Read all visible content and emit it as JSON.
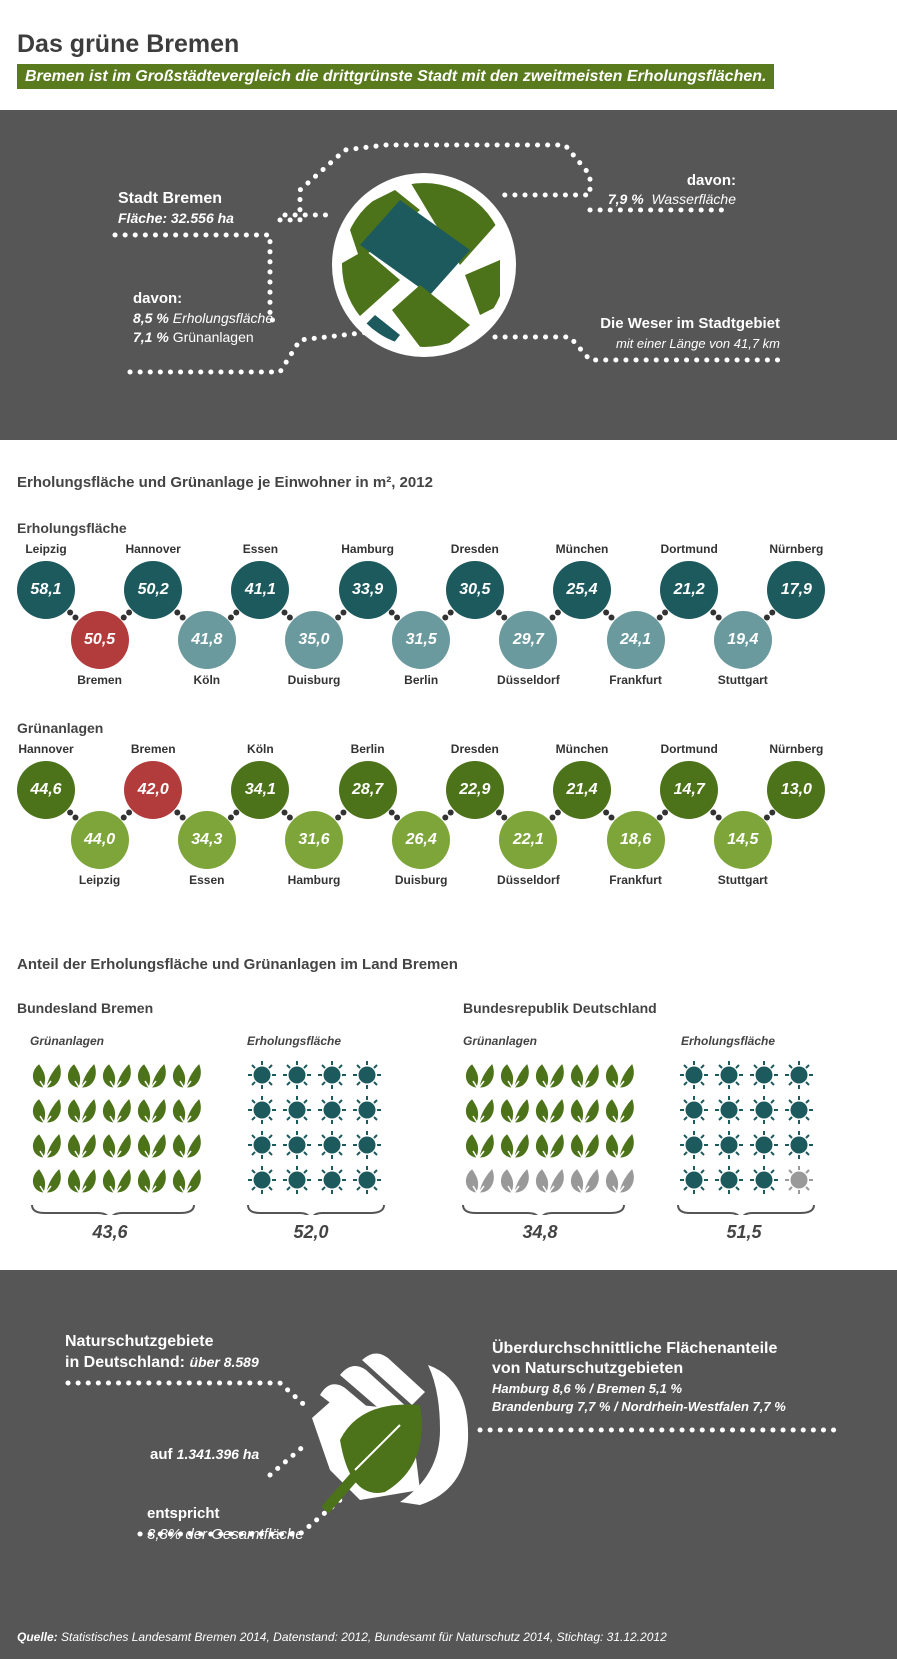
{
  "header": {
    "title": "Das grüne Bremen",
    "subtitle": "Bremen ist im Großstädtevergleich die drittgrünste Stadt mit den zweitmeisten Erholungsflächen."
  },
  "stadt": {
    "name": "Stadt Bremen",
    "flaeche": "Fläche: 32.556 ha",
    "davon_label": "davon:",
    "erholung_pct": "8,5 %",
    "erholung_txt": "Erholungsfläche",
    "gruen_pct": "7,1 %",
    "gruen_txt": "Grünanlagen",
    "davon_right": "davon:",
    "wasser_pct": "7,9 %",
    "wasser_txt": "Wasserfläche",
    "weser_title": "Die Weser im Stadtgebiet",
    "weser_sub": "mit einer Länge von 41,7 km"
  },
  "per_capita": {
    "title": "Erholungsfläche und Grünanlage je Einwohner in m², 2012",
    "erholung": {
      "label": "Erholungsfläche",
      "items": [
        {
          "city": "Leipzig",
          "value": "58,1",
          "tone": "dark",
          "pos": "top"
        },
        {
          "city": "Bremen",
          "value": "50,5",
          "tone": "red",
          "pos": "bottom"
        },
        {
          "city": "Hannover",
          "value": "50,2",
          "tone": "dark",
          "pos": "top"
        },
        {
          "city": "Köln",
          "value": "41,8",
          "tone": "light",
          "pos": "bottom"
        },
        {
          "city": "Essen",
          "value": "41,1",
          "tone": "dark",
          "pos": "top"
        },
        {
          "city": "Duisburg",
          "value": "35,0",
          "tone": "light",
          "pos": "bottom"
        },
        {
          "city": "Hamburg",
          "value": "33,9",
          "tone": "dark",
          "pos": "top"
        },
        {
          "city": "Berlin",
          "value": "31,5",
          "tone": "light",
          "pos": "bottom"
        },
        {
          "city": "Dresden",
          "value": "30,5",
          "tone": "dark",
          "pos": "top"
        },
        {
          "city": "Düsseldorf",
          "value": "29,7",
          "tone": "light",
          "pos": "bottom"
        },
        {
          "city": "München",
          "value": "25,4",
          "tone": "dark",
          "pos": "top"
        },
        {
          "city": "Frankfurt",
          "value": "24,1",
          "tone": "light",
          "pos": "bottom"
        },
        {
          "city": "Dortmund",
          "value": "21,2",
          "tone": "dark",
          "pos": "top"
        },
        {
          "city": "Stuttgart",
          "value": "19,4",
          "tone": "light",
          "pos": "bottom"
        },
        {
          "city": "Nürnberg",
          "value": "17,9",
          "tone": "dark",
          "pos": "top"
        }
      ]
    },
    "gruen": {
      "label": "Grünanlagen",
      "items": [
        {
          "city": "Hannover",
          "value": "44,6",
          "tone": "dark",
          "pos": "top"
        },
        {
          "city": "Leipzig",
          "value": "44,0",
          "tone": "light",
          "pos": "bottom"
        },
        {
          "city": "Bremen",
          "value": "42,0",
          "tone": "red",
          "pos": "top"
        },
        {
          "city": "Essen",
          "value": "34,3",
          "tone": "light",
          "pos": "bottom"
        },
        {
          "city": "Köln",
          "value": "34,1",
          "tone": "dark",
          "pos": "top"
        },
        {
          "city": "Hamburg",
          "value": "31,6",
          "tone": "light",
          "pos": "bottom"
        },
        {
          "city": "Berlin",
          "value": "28,7",
          "tone": "dark",
          "pos": "top"
        },
        {
          "city": "Duisburg",
          "value": "26,4",
          "tone": "light",
          "pos": "bottom"
        },
        {
          "city": "Dresden",
          "value": "22,9",
          "tone": "dark",
          "pos": "top"
        },
        {
          "city": "Düsseldorf",
          "value": "22,1",
          "tone": "light",
          "pos": "bottom"
        },
        {
          "city": "München",
          "value": "21,4",
          "tone": "dark",
          "pos": "top"
        },
        {
          "city": "Frankfurt",
          "value": "18,6",
          "tone": "light",
          "pos": "bottom"
        },
        {
          "city": "Dortmund",
          "value": "14,7",
          "tone": "dark",
          "pos": "top"
        },
        {
          "city": "Stuttgart",
          "value": "14,5",
          "tone": "light",
          "pos": "bottom"
        },
        {
          "city": "Nürnberg",
          "value": "13,0",
          "tone": "dark",
          "pos": "top"
        }
      ]
    }
  },
  "anteil": {
    "title": "Anteil der Erholungsfläche und Grünanlagen im Land Bremen",
    "bremen": {
      "label": "Bundesland Bremen",
      "gruen_label": "Grünanlagen",
      "gruen_value": "43,6",
      "gruen_filled": 20,
      "erholung_label": "Erholungsfläche",
      "erholung_value": "52,0",
      "erholung_filled": 16
    },
    "deutschland": {
      "label": "Bundesrepublik Deutschland",
      "gruen_label": "Grünanlagen",
      "gruen_value": "34,8",
      "gruen_filled": 15,
      "erholung_label": "Erholungsfläche",
      "erholung_value": "51,5",
      "erholung_filled": 15
    }
  },
  "naturschutz": {
    "title_line1": "Naturschutzgebiete",
    "title_line2": "in Deutschland:",
    "count": "über 8.589",
    "auf_label": "auf",
    "auf_value": "1.341.396 ha",
    "entspricht": "entspricht",
    "anteil": "3,8% der Gesamtfläche",
    "right_title1": "Überdurchschnittliche Flächenanteile",
    "right_title2": "von Naturschutzgebieten",
    "right_line1": "Hamburg 8,6 % /  Bremen 5,1 %",
    "right_line2": "Brandenburg 7,7 % / Nordrhein-Westfalen 7,7 %"
  },
  "source": {
    "label": "Quelle:",
    "text": "Statistisches Landesamt Bremen 2014, Datenstand: 2012, Bundesamt für Naturschutz 2014, Stichtag: 31.12.2012"
  },
  "colors": {
    "dark_teal": "#1d5a5e",
    "light_teal": "#6a9a9e",
    "red": "#b23b3b",
    "dark_green": "#4d731a",
    "light_green": "#7ea53a",
    "gray": "#999999"
  }
}
